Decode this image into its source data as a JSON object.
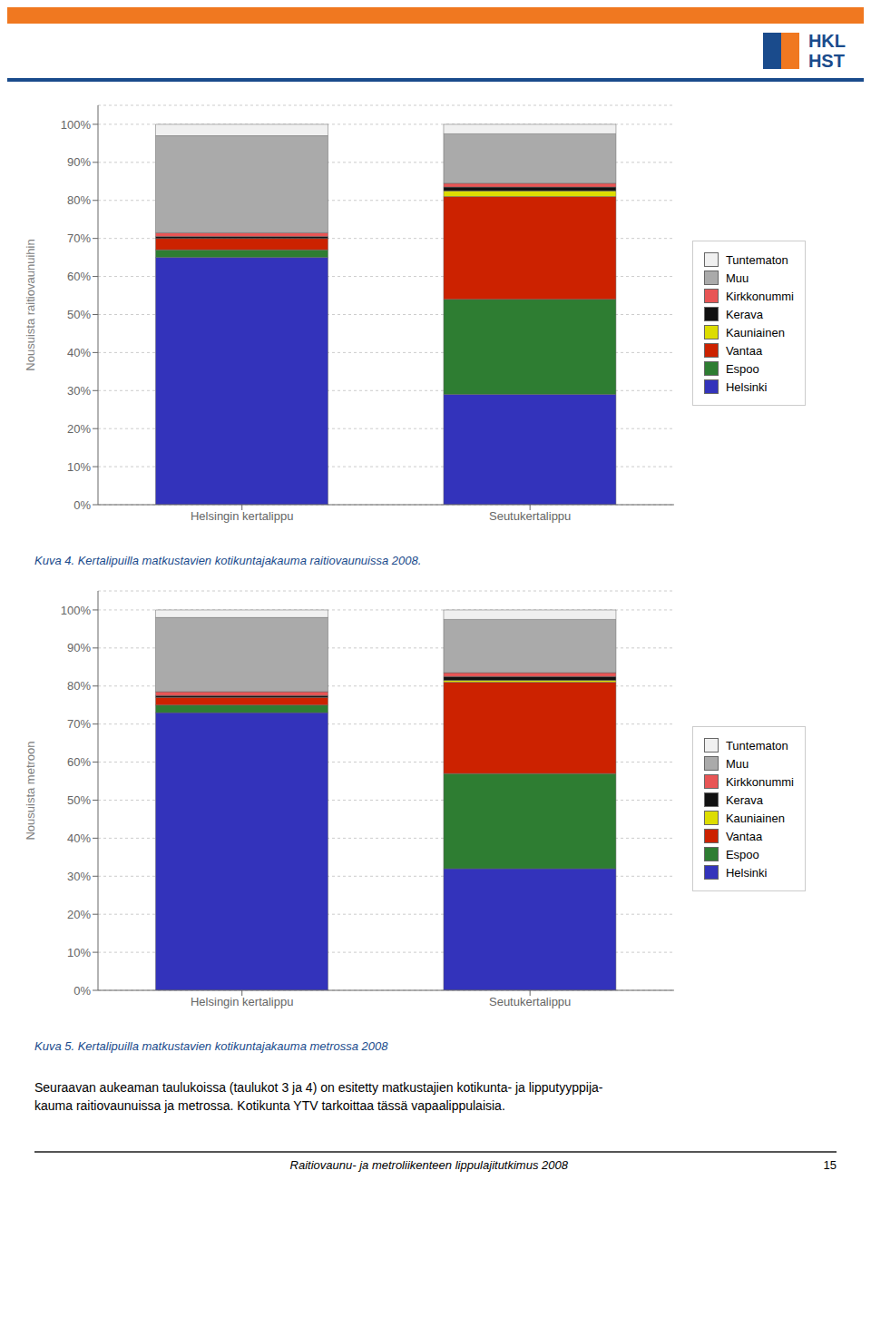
{
  "annotations": [
    "HKL",
    "HST",
    "Seuraavan aukeaman taulukoissa (taulukot 3 ja 4) on esitetty matkustajien kotikunta- ja lipputyyppija-",
    "kauma raitiovaunuissa ja metrossa. Kotikunta YTV tarkoittaa tässä vapaalippulaisia.",
    "Raitiovaunu- ja metroliikenteen lippulajitutkimus 2008",
    "15"
  ],
  "chart_data": [
    {
      "type": "bar",
      "title": "Kuva 4. Kertalipuilla matkustavien kotikuntajakauma raitiovaunuissa 2008.",
      "y_label": "Nousuista raitiovaunuihin",
      "categories": [
        "Helsingin kertalippu",
        "Seutukertalippu"
      ],
      "series": [
        {
          "name": "Helsinki",
          "color": "#3333bb",
          "values": [
            65,
            29
          ]
        },
        {
          "name": "Espoo",
          "color": "#2e7d32",
          "values": [
            2,
            25
          ]
        },
        {
          "name": "Vantaa",
          "color": "#cc2200",
          "values": [
            3,
            27
          ]
        },
        {
          "name": "Kauniainen",
          "color": "#dddd00",
          "values": [
            0,
            1.5
          ]
        },
        {
          "name": "Kerava",
          "color": "#111111",
          "values": [
            0.5,
            1
          ]
        },
        {
          "name": "Kirkkonummi",
          "color": "#e85555",
          "values": [
            1,
            1
          ]
        },
        {
          "name": "Muu",
          "color": "#aaaaaa",
          "values": [
            25.5,
            13
          ]
        },
        {
          "name": "Tuntematon",
          "color": "#f0f0f0",
          "values": [
            3,
            2.5
          ]
        }
      ],
      "ylim": [
        0,
        105
      ],
      "yticks": [
        {
          "value": 0,
          "label": "0%"
        },
        {
          "value": 10,
          "label": "10%"
        },
        {
          "value": 20,
          "label": "20%"
        },
        {
          "value": 30,
          "label": "30%"
        },
        {
          "value": 40,
          "label": "40%"
        },
        {
          "value": 50,
          "label": "50%"
        },
        {
          "value": 60,
          "label": "60%"
        },
        {
          "value": 70,
          "label": "70%"
        },
        {
          "value": 80,
          "label": "80%"
        },
        {
          "value": 90,
          "label": "90%"
        },
        {
          "value": 100,
          "label": "100%"
        }
      ],
      "grid": true,
      "stacked": true,
      "legend": "right"
    },
    {
      "type": "bar",
      "title": "Kuva 5. Kertalipuilla matkustavien kotikuntajakauma metrossa 2008",
      "y_label": "Nousuista metroon",
      "categories": [
        "Helsingin kertalippu",
        "Seutukertalippu"
      ],
      "series": [
        {
          "name": "Helsinki",
          "color": "#3333bb",
          "values": [
            73,
            32
          ]
        },
        {
          "name": "Espoo",
          "color": "#2e7d32",
          "values": [
            2,
            25
          ]
        },
        {
          "name": "Vantaa",
          "color": "#cc2200",
          "values": [
            2,
            24
          ]
        },
        {
          "name": "Kauniainen",
          "color": "#dddd00",
          "values": [
            0,
            0.5
          ]
        },
        {
          "name": "Kerava",
          "color": "#111111",
          "values": [
            0.5,
            1
          ]
        },
        {
          "name": "Kirkkonummi",
          "color": "#e85555",
          "values": [
            1,
            1
          ]
        },
        {
          "name": "Muu",
          "color": "#aaaaaa",
          "values": [
            19.5,
            14
          ]
        },
        {
          "name": "Tuntematon",
          "color": "#f0f0f0",
          "values": [
            2,
            2.5
          ]
        }
      ],
      "ylim": [
        0,
        105
      ],
      "yticks": [
        {
          "value": 0,
          "label": "0%"
        },
        {
          "value": 10,
          "label": "10%"
        },
        {
          "value": 20,
          "label": "20%"
        },
        {
          "value": 30,
          "label": "30%"
        },
        {
          "value": 40,
          "label": "40%"
        },
        {
          "value": 50,
          "label": "50%"
        },
        {
          "value": 60,
          "label": "60%"
        },
        {
          "value": 70,
          "label": "70%"
        },
        {
          "value": 80,
          "label": "80%"
        },
        {
          "value": 90,
          "label": "90%"
        },
        {
          "value": 100,
          "label": "100%"
        }
      ],
      "grid": true,
      "stacked": true,
      "legend": "right"
    }
  ]
}
